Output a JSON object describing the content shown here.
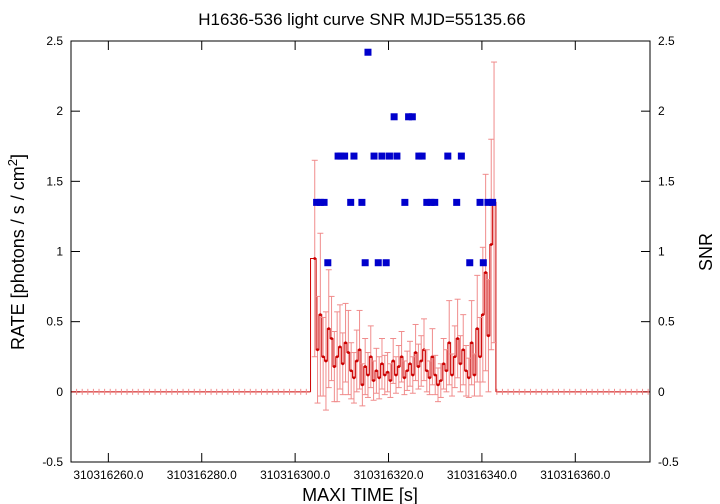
{
  "chart_data": {
    "type": "scatter",
    "title": "H1636-536 light curve  SNR MJD=55135.66",
    "xlabel": "MAXI TIME [s]",
    "ylabel": "RATE [photons / s / cm2]",
    "ylabel_base": "RATE [photons / s / cm",
    "ylabel_sup": "2",
    "ylabel_end": "]",
    "y2label": "SNR",
    "xlim": [
      310316252.0,
      310316376.0
    ],
    "ylim": [
      -0.5,
      2.5
    ],
    "y2lim": [
      -0.5,
      2.5
    ],
    "x_ticks": [
      310316260.0,
      310316280.0,
      310316300.0,
      310316320.0,
      310316340.0,
      310316360.0
    ],
    "x_tick_labels": [
      "310316260.0",
      "310316280.0",
      "310316300.0",
      "310316320.0",
      "310316340.0",
      "310316360.0"
    ],
    "y_ticks": [
      -0.5,
      0,
      0.5,
      1,
      1.5,
      2,
      2.5
    ],
    "y_tick_labels": [
      "-0.5",
      "0",
      "0.5",
      "1",
      "1.5",
      "2",
      "2.5"
    ],
    "y2_ticks": [
      -0.5,
      0,
      0.5,
      1,
      1.5,
      2,
      2.5
    ],
    "y2_tick_labels": [
      "-0.5",
      "0",
      "0.5",
      "1",
      "1.5",
      "2",
      "2.5"
    ],
    "series": [
      {
        "color": "#cc0000",
        "errcolor": "#f08c8c",
        "style": "step-with-errorbars",
        "x": [
          310316303.9,
          310316304.5,
          310316305.1,
          310316305.7,
          310316306.3,
          310316306.9,
          310316307.5,
          310316308.1,
          310316308.7,
          310316309.3,
          310316309.9,
          310316310.5,
          310316311.1,
          310316311.7,
          310316312.3,
          310316312.9,
          310316313.5,
          310316314.1,
          310316314.7,
          310316315.3,
          310316315.9,
          310316316.5,
          310316317.1,
          310316317.7,
          310316318.3,
          310316318.9,
          310316319.5,
          310316320.1,
          310316320.7,
          310316321.3,
          310316321.9,
          310316322.5,
          310316323.1,
          310316323.7,
          310316324.3,
          310316324.9,
          310316325.5,
          310316326.1,
          310316326.7,
          310316327.3,
          310316327.9,
          310316328.5,
          310316329.1,
          310316329.7,
          310316330.3,
          310316330.9,
          310316331.5,
          310316332.1,
          310316332.7,
          310316333.3,
          310316333.9,
          310316334.5,
          310316335.1,
          310316335.7,
          310316336.3,
          310316336.9,
          310316337.5,
          310316338.1,
          310316338.7,
          310316339.3,
          310316339.9,
          310316340.5,
          310316341.1,
          310316341.7,
          310316342.3
        ],
        "y": [
          0.95,
          0.3,
          0.55,
          0.25,
          0.22,
          0.45,
          0.38,
          0.18,
          0.25,
          0.32,
          0.2,
          0.35,
          0.28,
          0.15,
          0.1,
          0.22,
          0.3,
          0.05,
          0.18,
          0.12,
          0.25,
          0.08,
          0.15,
          0.1,
          0.2,
          0.12,
          0.14,
          0.08,
          0.22,
          0.12,
          0.18,
          0.25,
          0.1,
          0.15,
          0.2,
          0.12,
          0.28,
          0.18,
          0.22,
          0.3,
          0.15,
          0.1,
          0.25,
          0.12,
          0.05,
          0.08,
          0.2,
          0.15,
          0.35,
          0.12,
          0.25,
          0.38,
          0.2,
          0.3,
          0.15,
          0.1,
          0.35,
          0.12,
          0.45,
          0.25,
          0.55,
          0.85,
          0.4,
          1.05,
          1.35
        ],
        "err": [
          0.7,
          0.38,
          0.58,
          0.28,
          0.35,
          0.42,
          0.3,
          0.25,
          0.32,
          0.3,
          0.22,
          0.28,
          0.3,
          0.2,
          0.18,
          0.22,
          0.28,
          0.15,
          0.2,
          0.16,
          0.22,
          0.14,
          0.16,
          0.15,
          0.18,
          0.14,
          0.14,
          0.12,
          0.16,
          0.13,
          0.15,
          0.18,
          0.12,
          0.14,
          0.16,
          0.13,
          0.2,
          0.16,
          0.18,
          0.22,
          0.15,
          0.12,
          0.2,
          0.14,
          0.12,
          0.12,
          0.18,
          0.15,
          0.3,
          0.15,
          0.22,
          0.28,
          0.2,
          0.25,
          0.18,
          0.14,
          0.3,
          0.15,
          0.38,
          0.28,
          0.48,
          0.7,
          0.4,
          0.75,
          1.0
        ]
      },
      {
        "color": "#0000cc",
        "style": "squares",
        "x": [
          310316304.6,
          310316305.4,
          310316306.2,
          310316307.0,
          310316309.2,
          310316309.8,
          310316310.6,
          310316311.9,
          310316312.6,
          310316314.3,
          310316315.0,
          310316315.6,
          310316316.9,
          310316317.8,
          310316318.6,
          310316319.5,
          310316320.2,
          310316321.2,
          310316321.8,
          310316323.5,
          310316324.3,
          310316325.1,
          310316326.5,
          310316327.2,
          310316328.2,
          310316329.1,
          310316329.9,
          310316332.7,
          310316334.6,
          310316335.6,
          310316337.4,
          310316339.6,
          310316340.3,
          310316341.3,
          310316342.3
        ],
        "y": [
          1.35,
          1.35,
          1.35,
          0.92,
          1.68,
          1.68,
          1.68,
          1.35,
          1.68,
          1.35,
          0.92,
          2.42,
          1.68,
          0.92,
          1.68,
          0.92,
          1.68,
          1.96,
          1.68,
          1.35,
          1.96,
          1.96,
          1.68,
          1.68,
          1.35,
          1.35,
          1.35,
          1.68,
          1.35,
          1.68,
          0.92,
          1.35,
          0.92,
          1.35,
          1.35
        ]
      }
    ],
    "baseline": {
      "y": 0,
      "err": 0.01,
      "from": 310316252.0,
      "to": 310316376.0,
      "step": 1.2,
      "gap_from": 310316303.3,
      "gap_to": 310316343.0
    },
    "grid": false,
    "legend": "none"
  }
}
